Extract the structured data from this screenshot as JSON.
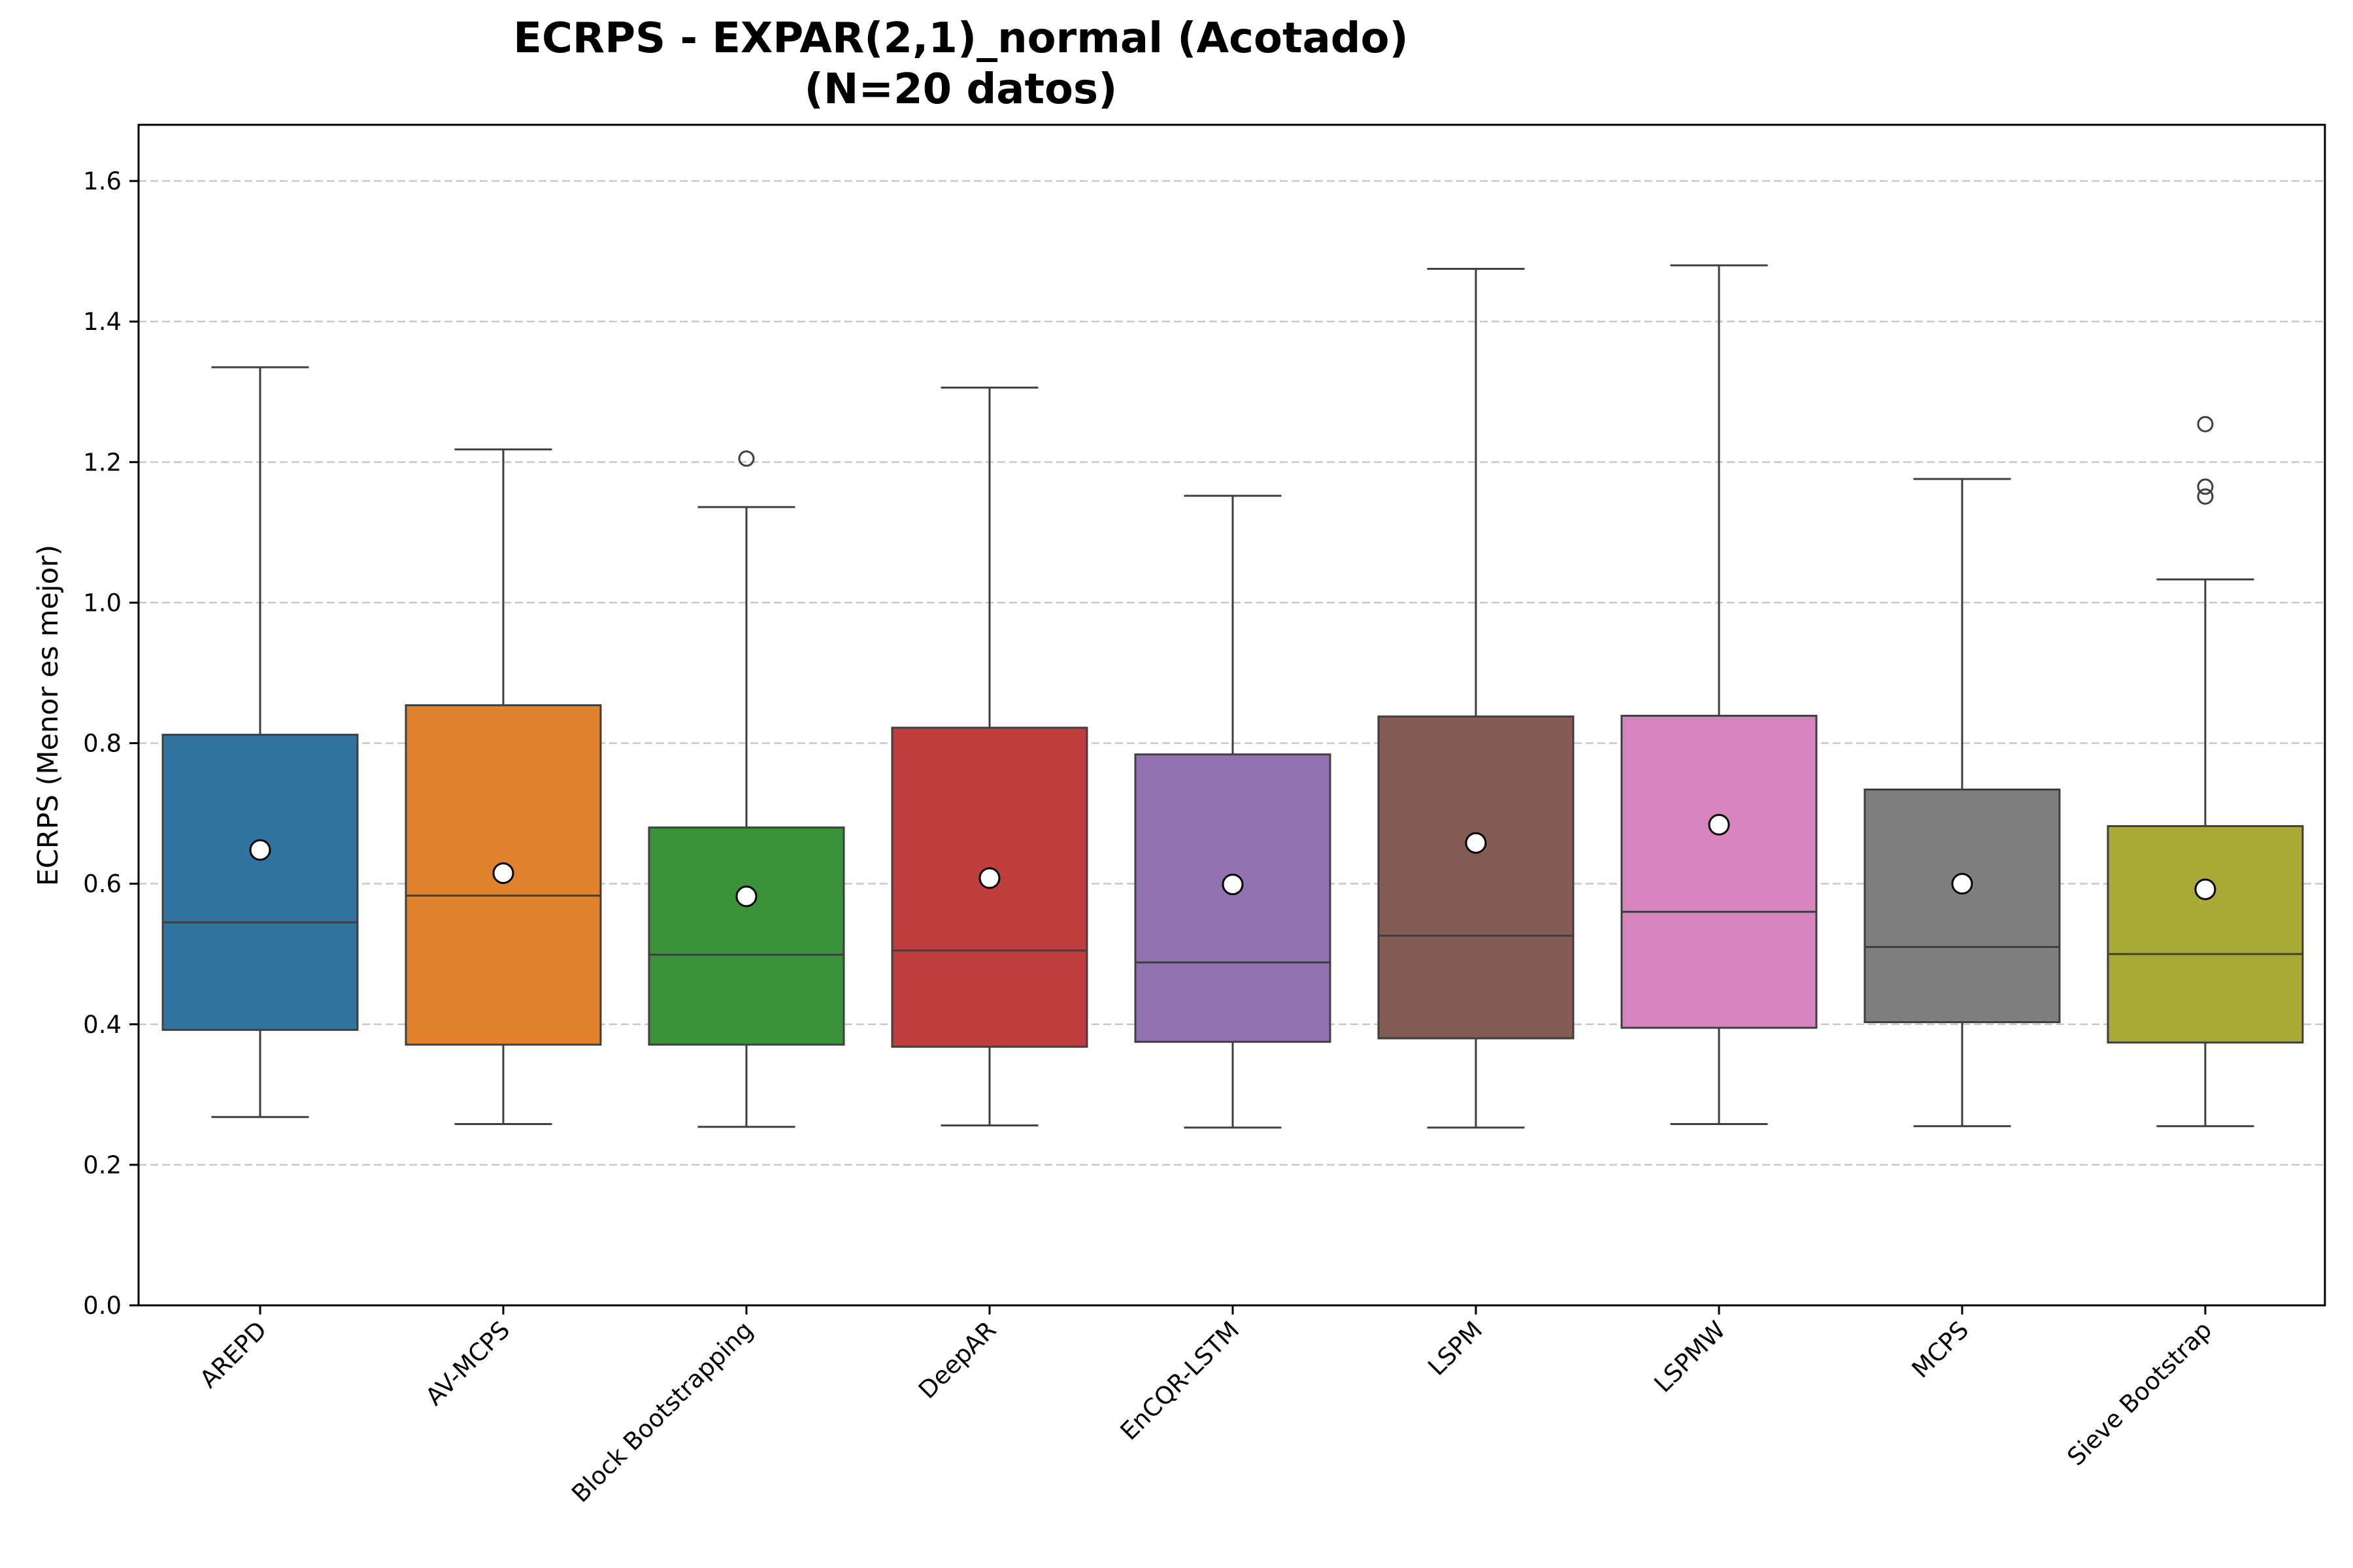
{
  "chart_data": {
    "type": "boxplot",
    "title": "ECRPS - EXPAR(2,1)_normal (Acotado)",
    "subtitle": "(N=20 datos)",
    "xlabel": "",
    "ylabel": "ECRPS (Menor es mejor)",
    "ylim": [
      0.0,
      1.68
    ],
    "yticks": [
      "0.0",
      "0.2",
      "0.4",
      "0.6",
      "0.8",
      "1.0",
      "1.2",
      "1.4",
      "1.6"
    ],
    "grid": "horizontal dashed",
    "categories": [
      "AREPD",
      "AV-MCPS",
      "Block Bootstrapping",
      "DeepAR",
      "EnCQR-LSTM",
      "LSPM",
      "LSPMW",
      "MCPS",
      "Sieve Bootstrap"
    ],
    "boxes": [
      {
        "name": "AREPD",
        "color": "#3274a1",
        "whisker_low": 0.268,
        "q1": 0.392,
        "median": 0.545,
        "q3": 0.812,
        "whisker_high": 1.335,
        "mean": 0.648,
        "outliers": []
      },
      {
        "name": "AV-MCPS",
        "color": "#e1812c",
        "whisker_low": 0.258,
        "q1": 0.371,
        "median": 0.583,
        "q3": 0.854,
        "whisker_high": 1.218,
        "mean": 0.615,
        "outliers": []
      },
      {
        "name": "Block Bootstrapping",
        "color": "#3a923a",
        "whisker_low": 0.254,
        "q1": 0.371,
        "median": 0.499,
        "q3": 0.68,
        "whisker_high": 1.136,
        "mean": 0.582,
        "outliers": [
          1.205
        ]
      },
      {
        "name": "DeepAR",
        "color": "#c03d3e",
        "whisker_low": 0.256,
        "q1": 0.368,
        "median": 0.505,
        "q3": 0.822,
        "whisker_high": 1.306,
        "mean": 0.608,
        "outliers": []
      },
      {
        "name": "EnCQR-LSTM",
        "color": "#9372b2",
        "whisker_low": 0.253,
        "q1": 0.375,
        "median": 0.488,
        "q3": 0.784,
        "whisker_high": 1.152,
        "mean": 0.599,
        "outliers": []
      },
      {
        "name": "LSPM",
        "color": "#845b53",
        "whisker_low": 0.253,
        "q1": 0.38,
        "median": 0.526,
        "q3": 0.838,
        "whisker_high": 1.475,
        "mean": 0.658,
        "outliers": []
      },
      {
        "name": "LSPMW",
        "color": "#d684bd",
        "whisker_low": 0.258,
        "q1": 0.395,
        "median": 0.56,
        "q3": 0.839,
        "whisker_high": 1.48,
        "mean": 0.684,
        "outliers": []
      },
      {
        "name": "MCPS",
        "color": "#7f7f7f",
        "whisker_low": 0.255,
        "q1": 0.403,
        "median": 0.51,
        "q3": 0.734,
        "whisker_high": 1.176,
        "mean": 0.6,
        "outliers": []
      },
      {
        "name": "Sieve Bootstrap",
        "color": "#a9aa35",
        "whisker_low": 0.255,
        "q1": 0.374,
        "median": 0.5,
        "q3": 0.682,
        "whisker_high": 1.033,
        "mean": 0.592,
        "outliers": [
          1.254,
          1.165,
          1.151
        ]
      }
    ]
  }
}
